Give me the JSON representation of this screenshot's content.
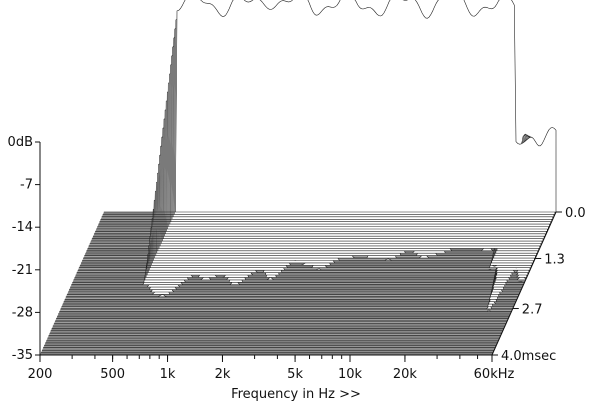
{
  "chart_data": {
    "type": "waterfall-3d",
    "xlabel": "Frequency in Hz >>",
    "x_ticks": [
      "200",
      "500",
      "1k",
      "2k",
      "5k",
      "10k",
      "20k",
      "60kHz"
    ],
    "x_tick_values": [
      200,
      500,
      1000,
      2000,
      5000,
      10000,
      20000,
      60000
    ],
    "xlim": [
      200,
      60000
    ],
    "x_scale": "log",
    "y_ticks": [
      "0dB",
      "-7",
      "-14",
      "-21",
      "-28",
      "-35"
    ],
    "y_tick_values": [
      0,
      -7,
      -14,
      -21,
      -28,
      -35
    ],
    "ylim": [
      -35,
      0
    ],
    "z_ticks": [
      "0.0",
      "1.3",
      "2.7",
      "4.0msec"
    ],
    "z_tick_values": [
      0.0,
      1.3,
      2.7,
      4.0
    ],
    "zlim": [
      0.0,
      4.0
    ],
    "slice_count": 60,
    "colors": {
      "floor": "#808080",
      "floor_lines": "#b8b8b8",
      "surface_fill": "#ffffff",
      "slice_line": "#222222"
    }
  }
}
